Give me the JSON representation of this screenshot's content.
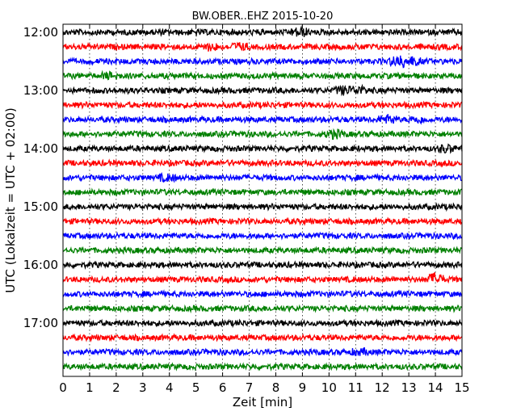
{
  "chart_data": {
    "type": "line",
    "title": "BW.OBER..EHZ 2015-10-20",
    "xlabel": "Zeit  [min]",
    "ylabel": "UTC (Lokalzeit = UTC + 02:00)",
    "xlim": [
      0,
      15
    ],
    "x_ticks": [
      "0",
      "1",
      "2",
      "3",
      "4",
      "5",
      "6",
      "7",
      "8",
      "9",
      "10",
      "11",
      "12",
      "13",
      "14",
      "15"
    ],
    "y_ticks": [
      "12:00",
      "13:00",
      "14:00",
      "15:00",
      "16:00",
      "17:00"
    ],
    "grid": true,
    "trace_colors": [
      "#000000",
      "#ff0000",
      "#0000ff",
      "#008000"
    ],
    "trace_start_times": [
      "12:00",
      "12:15",
      "12:30",
      "12:45",
      "13:00",
      "13:15",
      "13:30",
      "13:45",
      "14:00",
      "14:15",
      "14:30",
      "14:45",
      "15:00",
      "15:15",
      "15:30",
      "15:45",
      "16:00",
      "16:15",
      "16:30",
      "16:45",
      "17:00",
      "17:15",
      "17:30",
      "17:45"
    ],
    "events": [
      {
        "trace": "12:00",
        "minute": 8.9,
        "amplitude": 1.6
      },
      {
        "trace": "12:15",
        "minute": 5.6,
        "amplitude": 1.3
      },
      {
        "trace": "12:15",
        "minute": 6.6,
        "amplitude": 1.3
      },
      {
        "trace": "12:30",
        "minute": 12.6,
        "amplitude": 1.9
      },
      {
        "trace": "12:30",
        "minute": 13.1,
        "amplitude": 1.6
      },
      {
        "trace": "12:45",
        "minute": 1.8,
        "amplitude": 1.2
      },
      {
        "trace": "13:00",
        "minute": 10.5,
        "amplitude": 1.5
      },
      {
        "trace": "13:00",
        "minute": 11.1,
        "amplitude": 1.4
      },
      {
        "trace": "13:30",
        "minute": 12.2,
        "amplitude": 1.4
      },
      {
        "trace": "13:30",
        "minute": 13.3,
        "amplitude": 1.2
      },
      {
        "trace": "13:45",
        "minute": 10.2,
        "amplitude": 1.5
      },
      {
        "trace": "14:00",
        "minute": 14.4,
        "amplitude": 1.3
      },
      {
        "trace": "14:30",
        "minute": 3.9,
        "amplitude": 1.1
      },
      {
        "trace": "16:15",
        "minute": 14.0,
        "amplitude": 2.2
      },
      {
        "trace": "17:30",
        "minute": 11.2,
        "amplitude": 1.1
      }
    ]
  }
}
